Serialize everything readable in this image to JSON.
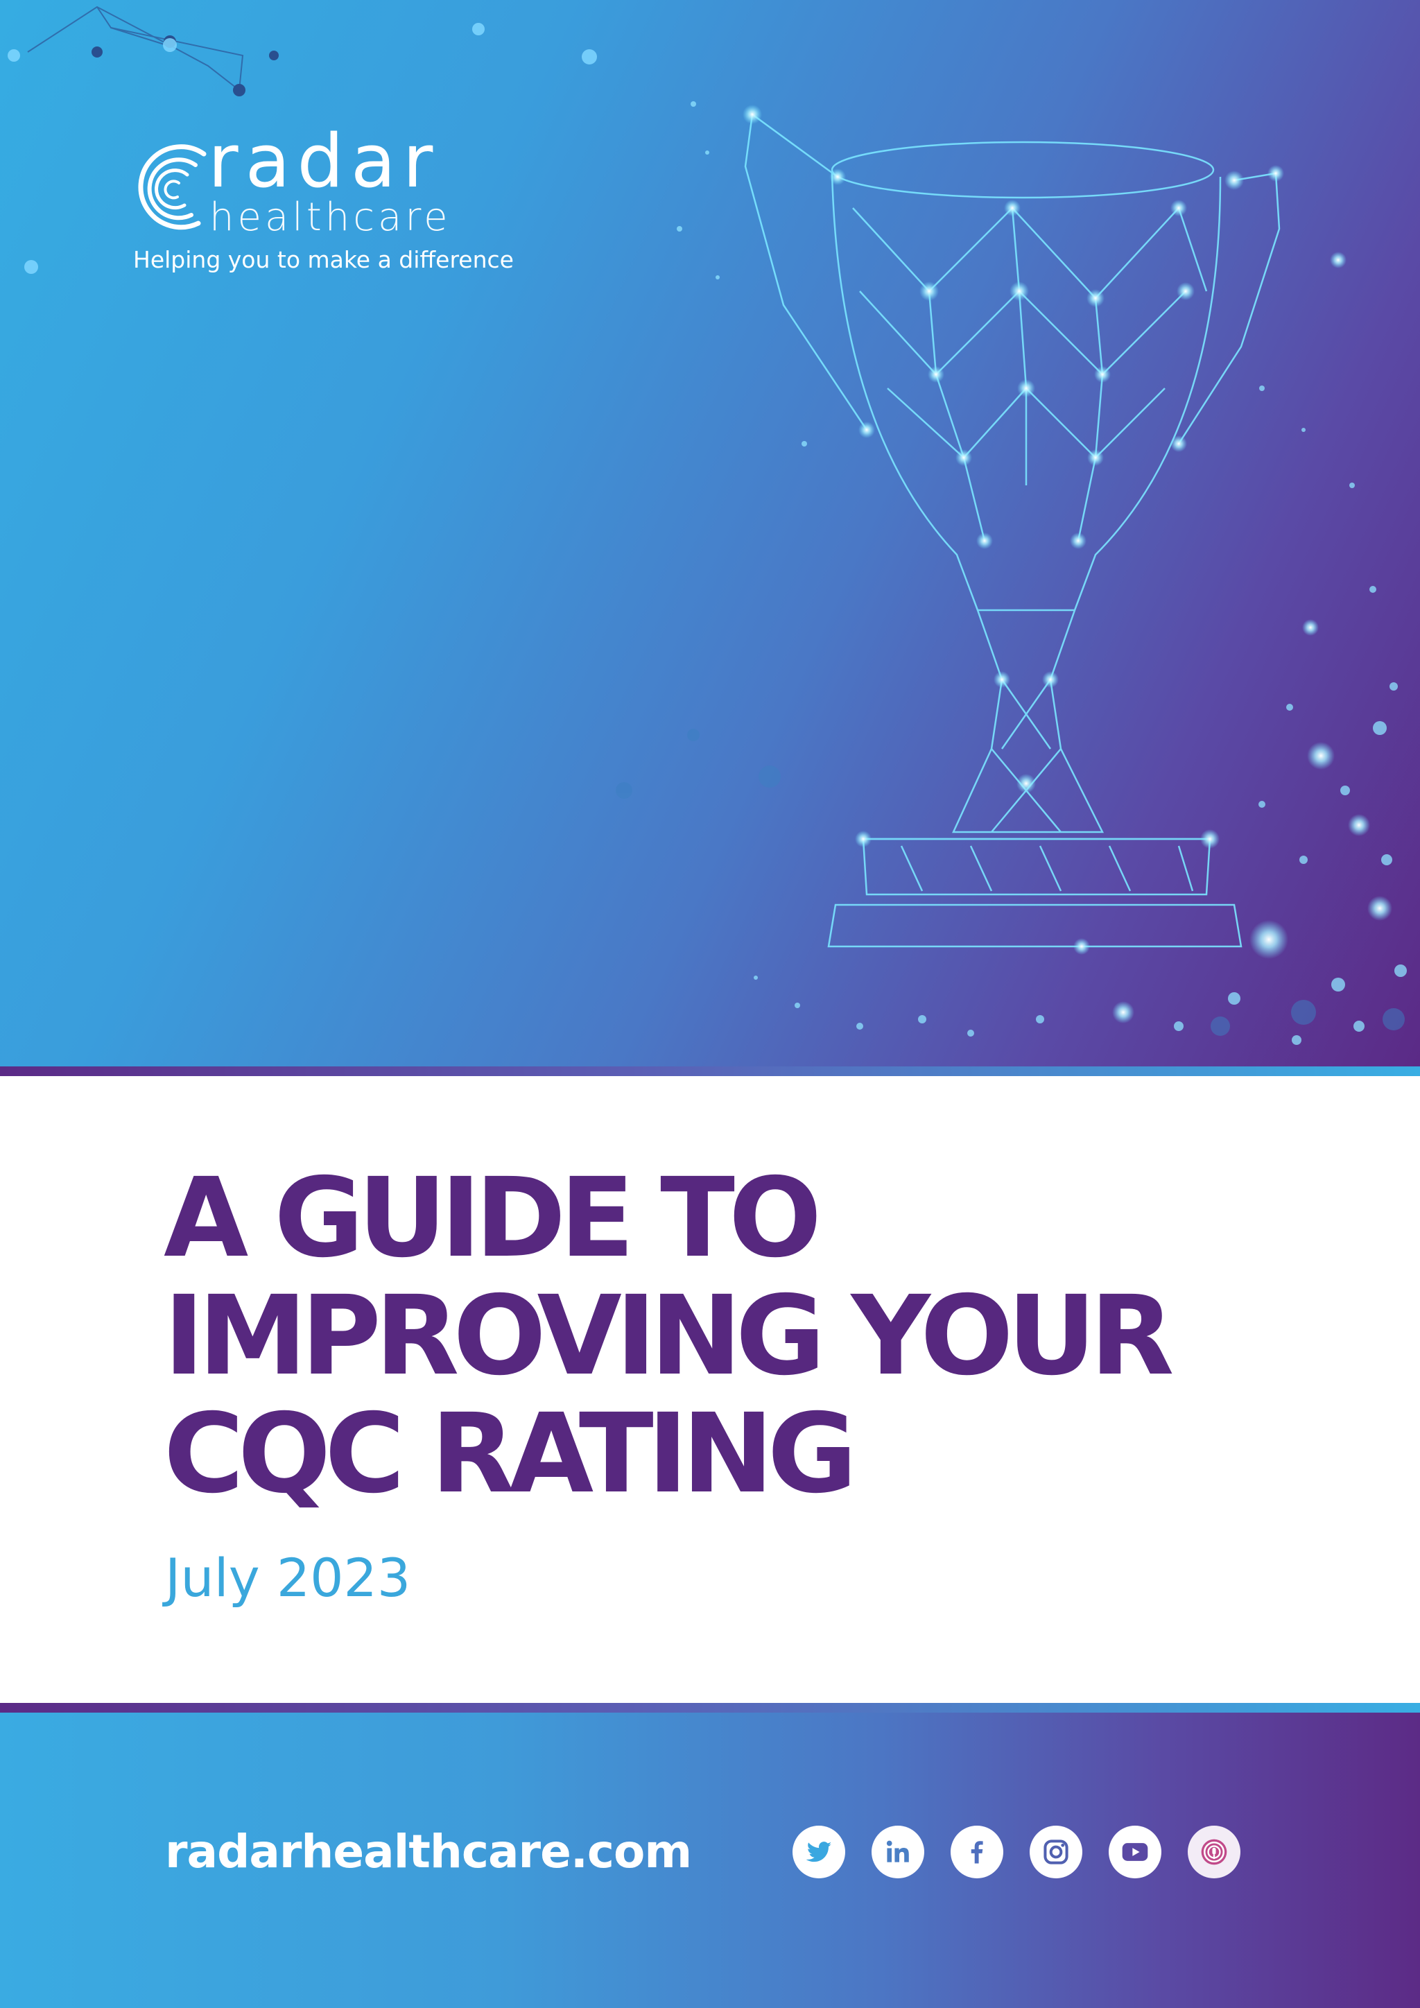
{
  "logo": {
    "wordmark": "radar",
    "subtitle": "healthcare",
    "tagline": "Helping you to make a difference"
  },
  "cover": {
    "title_lines": [
      "A GUIDE TO",
      "IMPROVING YOUR",
      "CQC RATING"
    ],
    "date": "July 2023"
  },
  "footer": {
    "website": "radarhealthcare.com",
    "social_icons": [
      "twitter-icon",
      "linkedin-icon",
      "facebook-icon",
      "instagram-icon",
      "youtube-icon",
      "podcast-icon"
    ]
  },
  "colors": {
    "title_purple": "#57287f",
    "date_blue": "#3aa7dc",
    "brand_blue": "#36ace2",
    "brand_purple": "#5b2a86"
  }
}
